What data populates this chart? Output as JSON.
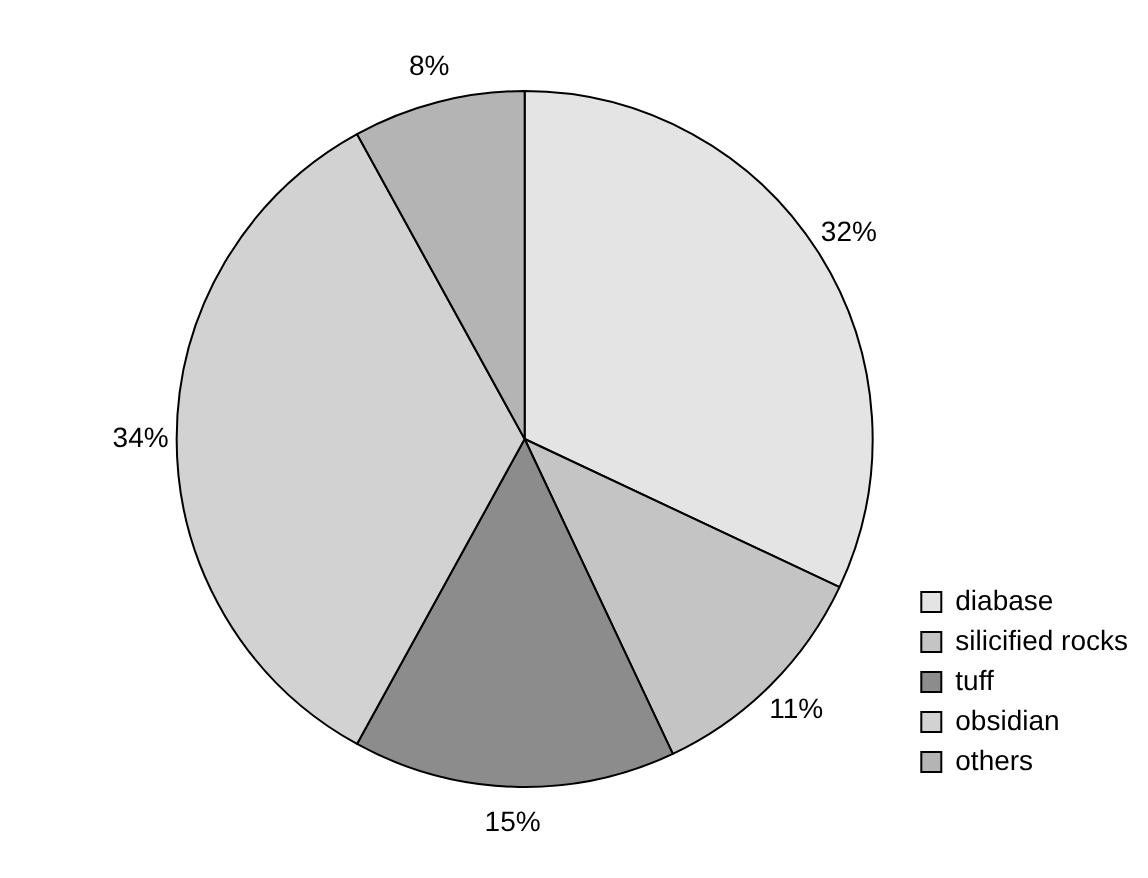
{
  "chart_data": {
    "type": "pie",
    "categories": [
      "diabase",
      "silicified rocks",
      "tuff",
      "obsidian",
      "others"
    ],
    "values": [
      32,
      11,
      15,
      34,
      8
    ],
    "value_labels": [
      "32%",
      "11%",
      "15%",
      "34%",
      "8%"
    ],
    "colors": [
      "#e4e4e4",
      "#c4c4c4",
      "#8c8c8c",
      "#d2d2d2",
      "#b4b4b4"
    ],
    "legend": "bottom right"
  }
}
